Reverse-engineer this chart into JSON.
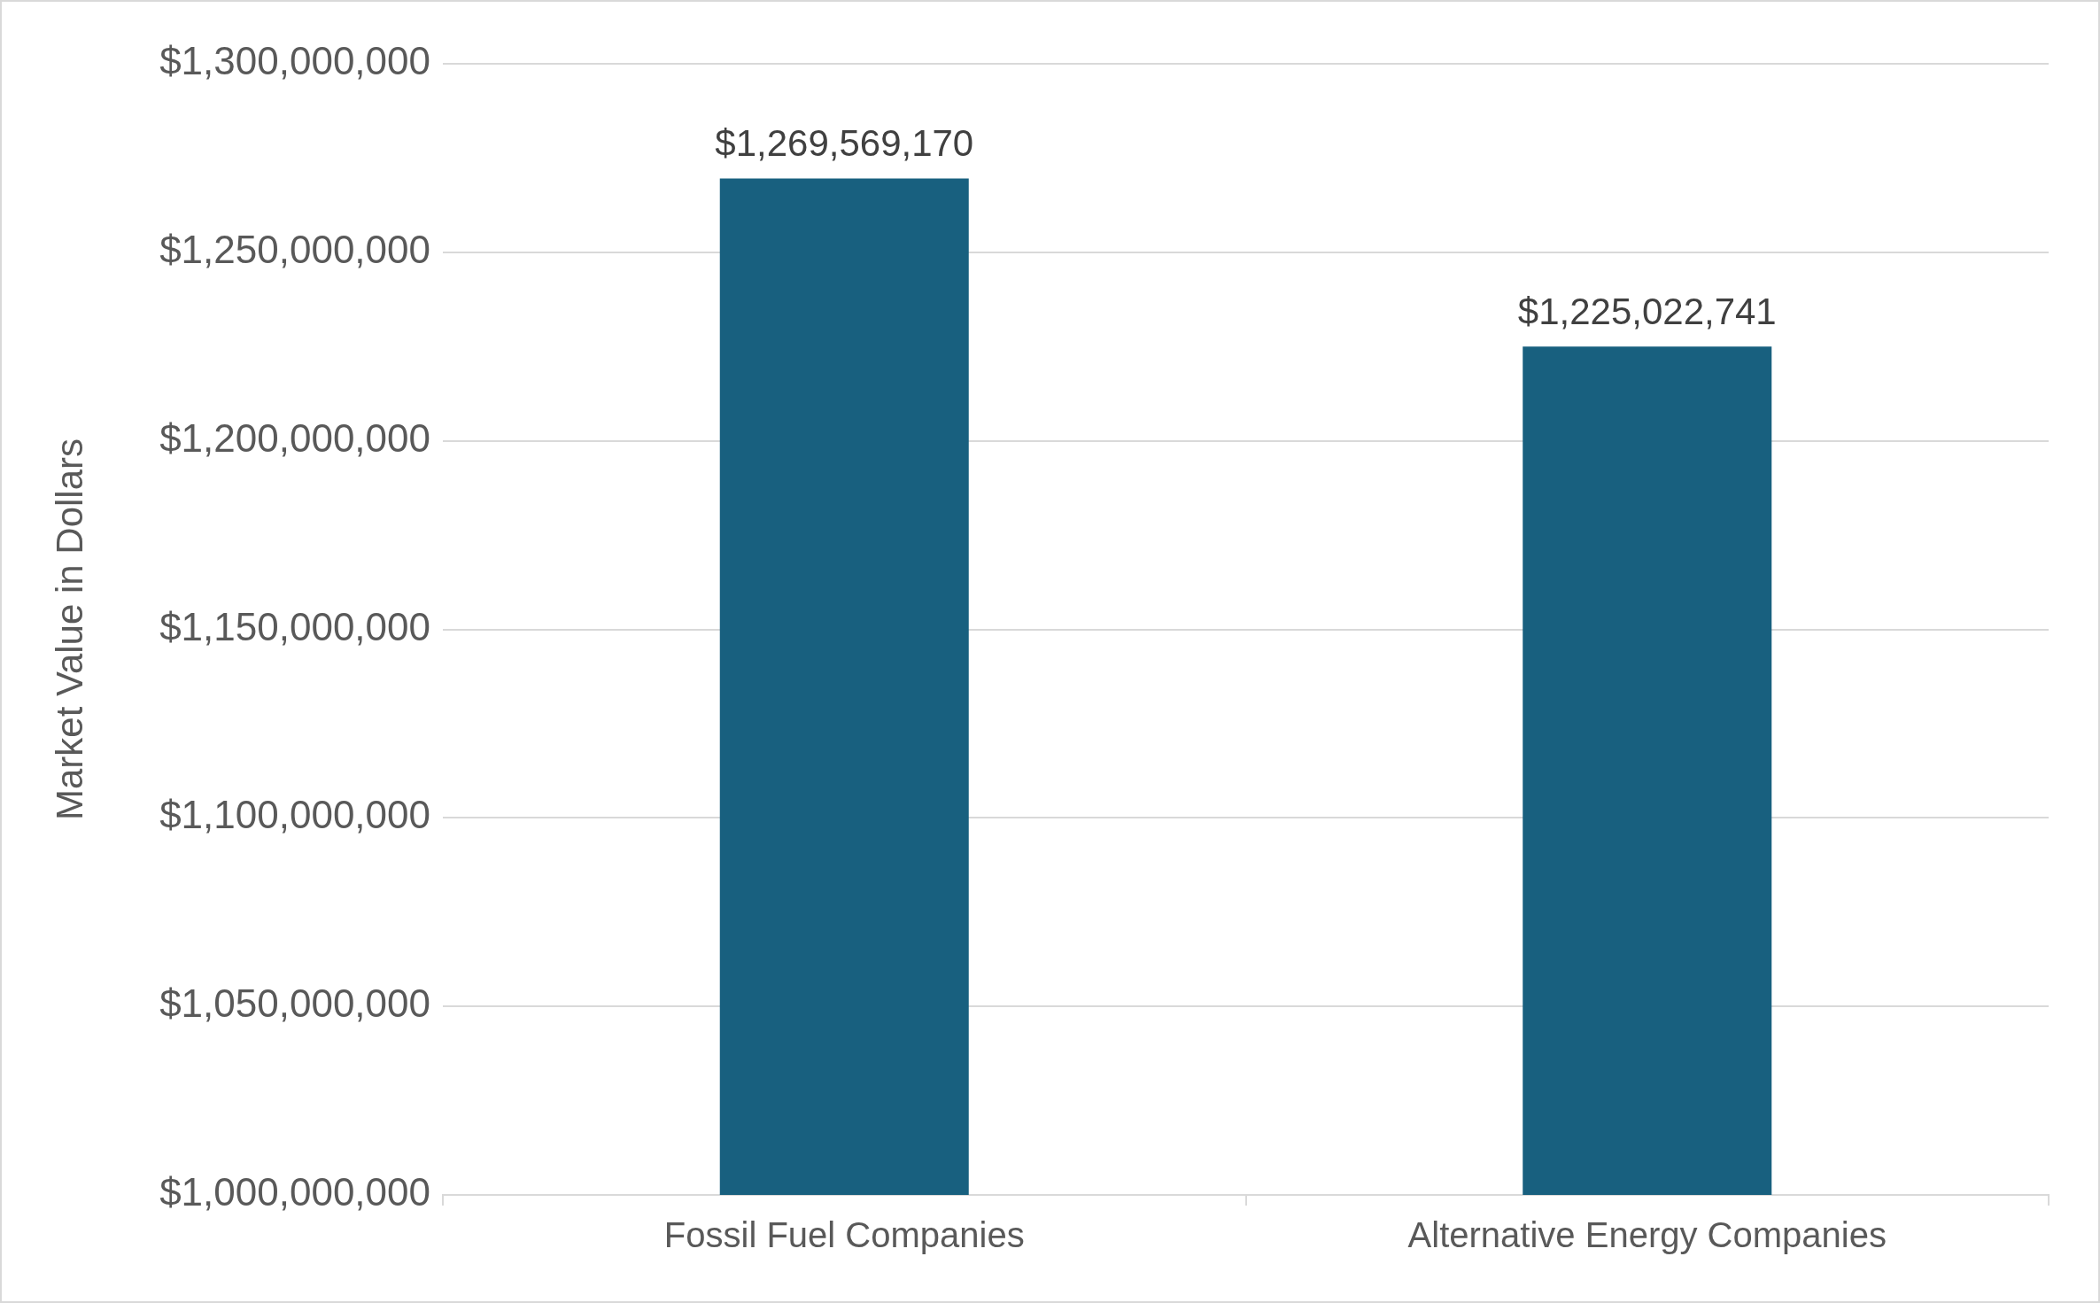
{
  "chart_data": {
    "type": "bar",
    "ylabel": "Market Value in Dollars",
    "categories": [
      "Fossil Fuel Companies",
      "Alternative Energy Companies"
    ],
    "values": [
      1269569170,
      1225022741
    ],
    "color": "#18607f",
    "value_labels": [
      "$1,269,569,170",
      "$1,225,022,741"
    ],
    "ylim": [
      1000000000,
      1300000000
    ],
    "yticks": [
      {
        "value": 1000000000,
        "label": "$1,000,000,000"
      },
      {
        "value": 1050000000,
        "label": "$1,050,000,000"
      },
      {
        "value": 1100000000,
        "label": "$1,100,000,000"
      },
      {
        "value": 1150000000,
        "label": "$1,150,000,000"
      },
      {
        "value": 1200000000,
        "label": "$1,200,000,000"
      },
      {
        "value": 1250000000,
        "label": "$1,250,000,000"
      },
      {
        "value": 1300000000,
        "label": "$1,300,000,000"
      }
    ],
    "grid": "y",
    "legend": false
  }
}
